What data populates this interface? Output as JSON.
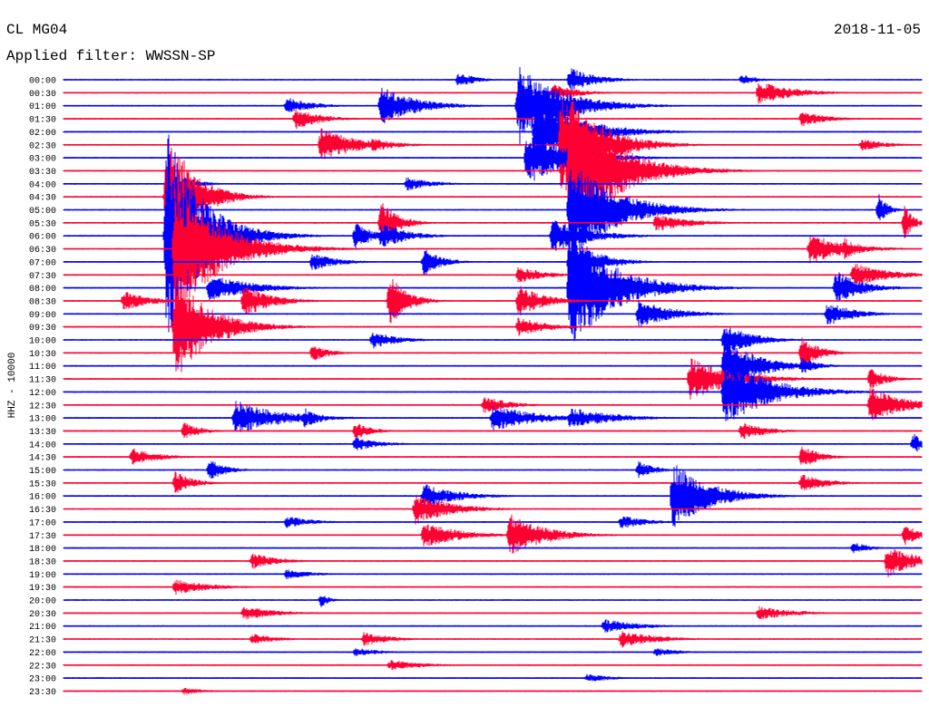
{
  "header": {
    "station": "CL MG04",
    "filter": "Applied filter: WWSSN-SP",
    "date": "2018-11-05"
  },
  "colors": {
    "trace_even": "#0000ff",
    "trace_odd": "#ff0033",
    "background": "#ffffff",
    "text": "#000000"
  },
  "chart_data": {
    "type": "helicorder",
    "title": "CL MG04",
    "subtitle": "Applied filter: WWSSN-SP",
    "ylabel": "HHZ - 10000",
    "xlabel": "",
    "grid": false,
    "row_interval_minutes": 30,
    "rows": [
      "00:00",
      "00:30",
      "01:00",
      "01:30",
      "02:00",
      "02:30",
      "03:00",
      "03:30",
      "04:00",
      "04:30",
      "05:00",
      "05:30",
      "06:00",
      "06:30",
      "07:00",
      "07:30",
      "08:00",
      "08:30",
      "09:00",
      "09:30",
      "10:00",
      "10:30",
      "11:00",
      "11:30",
      "12:00",
      "12:30",
      "13:00",
      "13:30",
      "14:00",
      "14:30",
      "15:00",
      "15:30",
      "16:00",
      "16:30",
      "17:00",
      "17:30",
      "18:00",
      "18:30",
      "19:00",
      "19:30",
      "20:00",
      "20:30",
      "21:00",
      "21:30",
      "22:00",
      "22:30",
      "23:00",
      "23:30"
    ],
    "color_cycle": [
      "blue",
      "red"
    ],
    "events": [
      {
        "row": 0,
        "t": 0.46,
        "amp": 9,
        "dur": 0.02
      },
      {
        "row": 0,
        "t": 0.59,
        "amp": 14,
        "dur": 0.03
      },
      {
        "row": 0,
        "t": 0.79,
        "amp": 6,
        "dur": 0.02
      },
      {
        "row": 1,
        "t": 0.57,
        "amp": 10,
        "dur": 0.03
      },
      {
        "row": 1,
        "t": 0.81,
        "amp": 13,
        "dur": 0.04
      },
      {
        "row": 2,
        "t": 0.26,
        "amp": 10,
        "dur": 0.03
      },
      {
        "row": 2,
        "t": 0.37,
        "amp": 22,
        "dur": 0.04
      },
      {
        "row": 2,
        "t": 0.53,
        "amp": 45,
        "dur": 0.05
      },
      {
        "row": 3,
        "t": 0.27,
        "amp": 12,
        "dur": 0.03
      },
      {
        "row": 3,
        "t": 0.86,
        "amp": 9,
        "dur": 0.03
      },
      {
        "row": 4,
        "t": 0.55,
        "amp": 40,
        "dur": 0.05
      },
      {
        "row": 5,
        "t": 0.3,
        "amp": 20,
        "dur": 0.04
      },
      {
        "row": 5,
        "t": 0.36,
        "amp": 8,
        "dur": 0.03
      },
      {
        "row": 5,
        "t": 0.58,
        "amp": 70,
        "dur": 0.04
      },
      {
        "row": 5,
        "t": 0.93,
        "amp": 7,
        "dur": 0.03
      },
      {
        "row": 6,
        "t": 0.54,
        "amp": 30,
        "dur": 0.05
      },
      {
        "row": 7,
        "t": 0.59,
        "amp": 85,
        "dur": 0.05
      },
      {
        "row": 8,
        "t": 0.14,
        "amp": 9,
        "dur": 0.02
      },
      {
        "row": 8,
        "t": 0.4,
        "amp": 8,
        "dur": 0.03
      },
      {
        "row": 9,
        "t": 0.12,
        "amp": 80,
        "dur": 0.03
      },
      {
        "row": 10,
        "t": 0.95,
        "amp": 18,
        "dur": 0.01
      },
      {
        "row": 10,
        "t": 0.59,
        "amp": 60,
        "dur": 0.05
      },
      {
        "row": 11,
        "t": 0.37,
        "amp": 25,
        "dur": 0.02
      },
      {
        "row": 11,
        "t": 0.69,
        "amp": 10,
        "dur": 0.04
      },
      {
        "row": 11,
        "t": 0.98,
        "amp": 20,
        "dur": 0.01
      },
      {
        "row": 12,
        "t": 0.12,
        "amp": 120,
        "dur": 0.04
      },
      {
        "row": 12,
        "t": 0.34,
        "amp": 16,
        "dur": 0.02
      },
      {
        "row": 12,
        "t": 0.37,
        "amp": 15,
        "dur": 0.03
      },
      {
        "row": 12,
        "t": 0.57,
        "amp": 20,
        "dur": 0.04
      },
      {
        "row": 13,
        "t": 0.13,
        "amp": 80,
        "dur": 0.05
      },
      {
        "row": 13,
        "t": 0.87,
        "amp": 18,
        "dur": 0.04
      },
      {
        "row": 13,
        "t": 0.91,
        "amp": 12,
        "dur": 0.02
      },
      {
        "row": 14,
        "t": 0.29,
        "amp": 10,
        "dur": 0.03
      },
      {
        "row": 14,
        "t": 0.42,
        "amp": 16,
        "dur": 0.02
      },
      {
        "row": 14,
        "t": 0.59,
        "amp": 30,
        "dur": 0.03
      },
      {
        "row": 15,
        "t": 0.53,
        "amp": 10,
        "dur": 0.03
      },
      {
        "row": 15,
        "t": 0.92,
        "amp": 14,
        "dur": 0.04
      },
      {
        "row": 16,
        "t": 0.17,
        "amp": 15,
        "dur": 0.05
      },
      {
        "row": 16,
        "t": 0.59,
        "amp": 70,
        "dur": 0.05
      },
      {
        "row": 16,
        "t": 0.9,
        "amp": 20,
        "dur": 0.03
      },
      {
        "row": 17,
        "t": 0.07,
        "amp": 12,
        "dur": 0.03
      },
      {
        "row": 17,
        "t": 0.21,
        "amp": 20,
        "dur": 0.03
      },
      {
        "row": 17,
        "t": 0.38,
        "amp": 30,
        "dur": 0.02
      },
      {
        "row": 17,
        "t": 0.53,
        "amp": 18,
        "dur": 0.03
      },
      {
        "row": 18,
        "t": 0.67,
        "amp": 16,
        "dur": 0.04
      },
      {
        "row": 18,
        "t": 0.89,
        "amp": 14,
        "dur": 0.03
      },
      {
        "row": 19,
        "t": 0.13,
        "amp": 60,
        "dur": 0.04
      },
      {
        "row": 19,
        "t": 0.53,
        "amp": 12,
        "dur": 0.03
      },
      {
        "row": 20,
        "t": 0.36,
        "amp": 10,
        "dur": 0.03
      },
      {
        "row": 20,
        "t": 0.77,
        "amp": 20,
        "dur": 0.03
      },
      {
        "row": 21,
        "t": 0.29,
        "amp": 10,
        "dur": 0.02
      },
      {
        "row": 21,
        "t": 0.86,
        "amp": 20,
        "dur": 0.02
      },
      {
        "row": 22,
        "t": 0.77,
        "amp": 30,
        "dur": 0.04
      },
      {
        "row": 22,
        "t": 0.86,
        "amp": 10,
        "dur": 0.02
      },
      {
        "row": 23,
        "t": 0.73,
        "amp": 24,
        "dur": 0.05
      },
      {
        "row": 23,
        "t": 0.94,
        "amp": 12,
        "dur": 0.02
      },
      {
        "row": 24,
        "t": 0.77,
        "amp": 40,
        "dur": 0.05
      },
      {
        "row": 25,
        "t": 0.49,
        "amp": 10,
        "dur": 0.03
      },
      {
        "row": 25,
        "t": 0.94,
        "amp": 20,
        "dur": 0.04
      },
      {
        "row": 26,
        "t": 0.2,
        "amp": 20,
        "dur": 0.05
      },
      {
        "row": 26,
        "t": 0.28,
        "amp": 12,
        "dur": 0.02
      },
      {
        "row": 26,
        "t": 0.5,
        "amp": 15,
        "dur": 0.05
      },
      {
        "row": 26,
        "t": 0.59,
        "amp": 12,
        "dur": 0.05
      },
      {
        "row": 27,
        "t": 0.14,
        "amp": 10,
        "dur": 0.02
      },
      {
        "row": 27,
        "t": 0.34,
        "amp": 10,
        "dur": 0.02
      },
      {
        "row": 27,
        "t": 0.79,
        "amp": 10,
        "dur": 0.03
      },
      {
        "row": 28,
        "t": 0.34,
        "amp": 8,
        "dur": 0.03
      },
      {
        "row": 28,
        "t": 0.99,
        "amp": 14,
        "dur": 0.01
      },
      {
        "row": 29,
        "t": 0.08,
        "amp": 10,
        "dur": 0.03
      },
      {
        "row": 29,
        "t": 0.86,
        "amp": 14,
        "dur": 0.02
      },
      {
        "row": 30,
        "t": 0.17,
        "amp": 12,
        "dur": 0.02
      },
      {
        "row": 30,
        "t": 0.67,
        "amp": 10,
        "dur": 0.02
      },
      {
        "row": 31,
        "t": 0.13,
        "amp": 14,
        "dur": 0.02
      },
      {
        "row": 31,
        "t": 0.86,
        "amp": 10,
        "dur": 0.03
      },
      {
        "row": 32,
        "t": 0.42,
        "amp": 14,
        "dur": 0.04
      },
      {
        "row": 32,
        "t": 0.71,
        "amp": 40,
        "dur": 0.04
      },
      {
        "row": 33,
        "t": 0.41,
        "amp": 18,
        "dur": 0.04
      },
      {
        "row": 34,
        "t": 0.26,
        "amp": 7,
        "dur": 0.03
      },
      {
        "row": 34,
        "t": 0.65,
        "amp": 8,
        "dur": 0.03
      },
      {
        "row": 35,
        "t": 0.42,
        "amp": 15,
        "dur": 0.04
      },
      {
        "row": 35,
        "t": 0.52,
        "amp": 24,
        "dur": 0.04
      },
      {
        "row": 35,
        "t": 0.98,
        "amp": 12,
        "dur": 0.02
      },
      {
        "row": 36,
        "t": 0.92,
        "amp": 7,
        "dur": 0.02
      },
      {
        "row": 37,
        "t": 0.22,
        "amp": 9,
        "dur": 0.03
      },
      {
        "row": 37,
        "t": 0.96,
        "amp": 20,
        "dur": 0.03
      },
      {
        "row": 38,
        "t": 0.26,
        "amp": 6,
        "dur": 0.03
      },
      {
        "row": 39,
        "t": 0.13,
        "amp": 9,
        "dur": 0.04
      },
      {
        "row": 40,
        "t": 0.3,
        "amp": 8,
        "dur": 0.01
      },
      {
        "row": 41,
        "t": 0.21,
        "amp": 8,
        "dur": 0.04
      },
      {
        "row": 41,
        "t": 0.81,
        "amp": 8,
        "dur": 0.04
      },
      {
        "row": 42,
        "t": 0.63,
        "amp": 8,
        "dur": 0.04
      },
      {
        "row": 43,
        "t": 0.22,
        "amp": 6,
        "dur": 0.03
      },
      {
        "row": 43,
        "t": 0.35,
        "amp": 8,
        "dur": 0.03
      },
      {
        "row": 43,
        "t": 0.65,
        "amp": 10,
        "dur": 0.04
      },
      {
        "row": 44,
        "t": 0.34,
        "amp": 5,
        "dur": 0.03
      },
      {
        "row": 44,
        "t": 0.69,
        "amp": 5,
        "dur": 0.03
      },
      {
        "row": 45,
        "t": 0.38,
        "amp": 6,
        "dur": 0.04
      },
      {
        "row": 46,
        "t": 0.61,
        "amp": 5,
        "dur": 0.03
      },
      {
        "row": 47,
        "t": 0.14,
        "amp": 4,
        "dur": 0.03
      }
    ]
  }
}
